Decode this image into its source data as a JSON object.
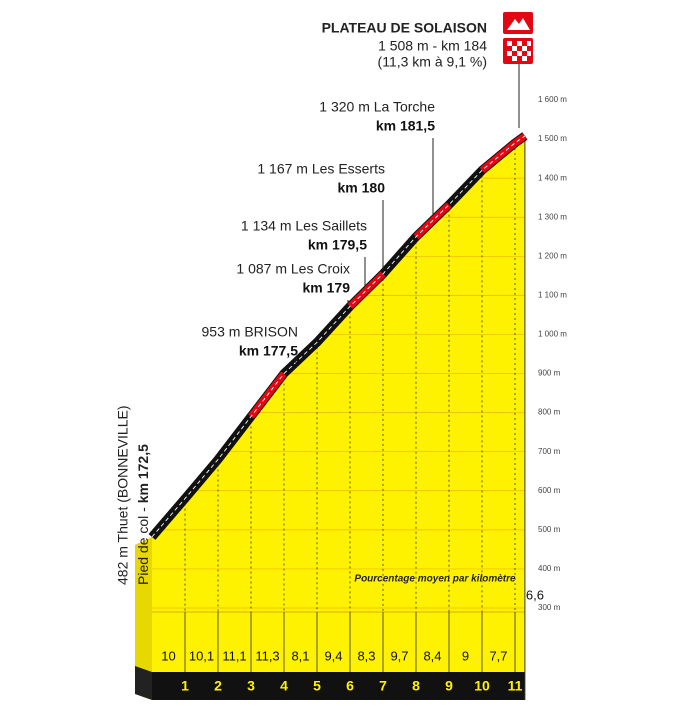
{
  "chart_data": {
    "type": "climb-profile",
    "title": "PLATEAU DE SOLAISON",
    "summit_altitude": "1 508 m - km 184",
    "summit_stats": "(11,3 km à 9,1 %)",
    "start_label": "482 m Thuet (BONNEVILLE)",
    "start_prefix": "Pied de col - ",
    "start_km": "km 172,5",
    "waypoints": [
      {
        "label": "1 320 m La Torche",
        "km": "km 181,5"
      },
      {
        "label": "1 167 m Les Esserts",
        "km": "km 180"
      },
      {
        "label": "1 134 m Les Saillets",
        "km": "km 179,5"
      },
      {
        "label": "1 087 m Les Croix",
        "km": "km 179"
      },
      {
        "label": "953 m BRISON",
        "km": "km 177,5"
      }
    ],
    "annotation": "Pourcentage moyen par kilomètre",
    "profile": {
      "km": [
        0,
        1,
        2,
        3,
        4,
        5,
        6,
        7,
        8,
        9,
        10,
        11,
        11.3
      ],
      "altitude": [
        482,
        580,
        680,
        790,
        900,
        980,
        1072,
        1155,
        1250,
        1332,
        1420,
        1490,
        1508
      ]
    },
    "gradients": {
      "values": [
        10,
        10.1,
        11.1,
        11.3,
        8.1,
        9.4,
        8.3,
        9.7,
        8.4,
        9,
        7.7,
        6.6
      ],
      "value_labels": [
        "10",
        "10,1",
        "11,1",
        "11,3",
        "8,1",
        "9,4",
        "8,3",
        "9,7",
        "8,4",
        "9",
        "7,7",
        "6,6"
      ]
    },
    "road_colors": [
      "#111111",
      "#111111",
      "#111111",
      "#e30613",
      "#111111",
      "#111111",
      "#e30613",
      "#111111",
      "#e30613",
      "#111111",
      "#e30613",
      "#e30613"
    ],
    "fill_color": "#fff200",
    "xticks": [
      1,
      2,
      3,
      4,
      5,
      6,
      7,
      8,
      9,
      10,
      11
    ],
    "ylim": [
      300,
      1600
    ],
    "yticks": [
      {
        "value": 300,
        "label": "300 m"
      },
      {
        "value": 400,
        "label": "400 m"
      },
      {
        "value": 500,
        "label": "500 m"
      },
      {
        "value": 600,
        "label": "600 m"
      },
      {
        "value": 700,
        "label": "700 m"
      },
      {
        "value": 800,
        "label": "800 m"
      },
      {
        "value": 900,
        "label": "900 m"
      },
      {
        "value": 1000,
        "label": "1 000 m"
      },
      {
        "value": 1100,
        "label": "1 100 m"
      },
      {
        "value": 1200,
        "label": "1 200 m"
      },
      {
        "value": 1300,
        "label": "1 300 m"
      },
      {
        "value": 1400,
        "label": "1 400 m"
      },
      {
        "value": 1500,
        "label": "1 500 m"
      },
      {
        "value": 1600,
        "label": "1 600 m"
      }
    ],
    "grid": true
  }
}
